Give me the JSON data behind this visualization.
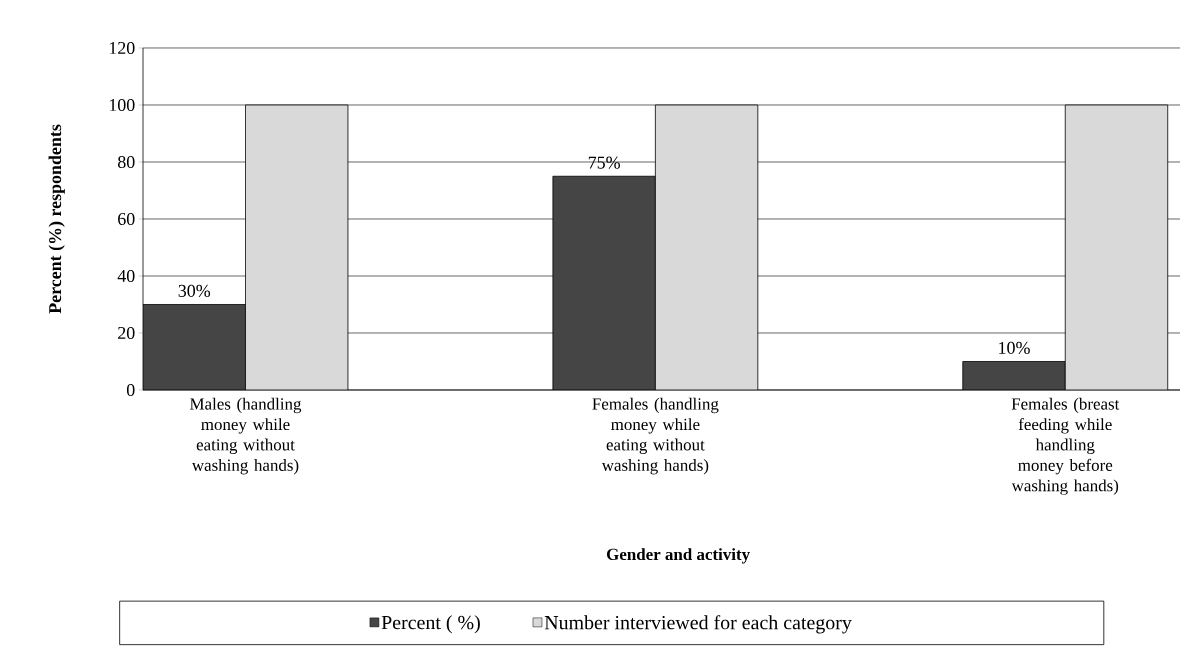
{
  "chart_data": {
    "type": "bar",
    "categories": [
      "Males (handling money while eating  without washing hands)",
      "Females (handling money while eating  without washing hands)",
      "Females (breast feeding while handling money before washing hands)"
    ],
    "series": [
      {
        "name": "Percent ( %)",
        "color": "#454545",
        "values": [
          30,
          75,
          10
        ],
        "value_labels": [
          "30%",
          "75%",
          "10%"
        ]
      },
      {
        "name": "Number interviewed for each category",
        "color": "#d9d9d9",
        "values": [
          100,
          100,
          100
        ]
      }
    ],
    "xlabel": "Gender and activity",
    "ylabel": "Percent (%) respondents",
    "ylim": [
      0,
      120
    ],
    "yticks": [
      0,
      20,
      40,
      60,
      80,
      100,
      120
    ],
    "grid": "y",
    "legend": "bottom"
  }
}
